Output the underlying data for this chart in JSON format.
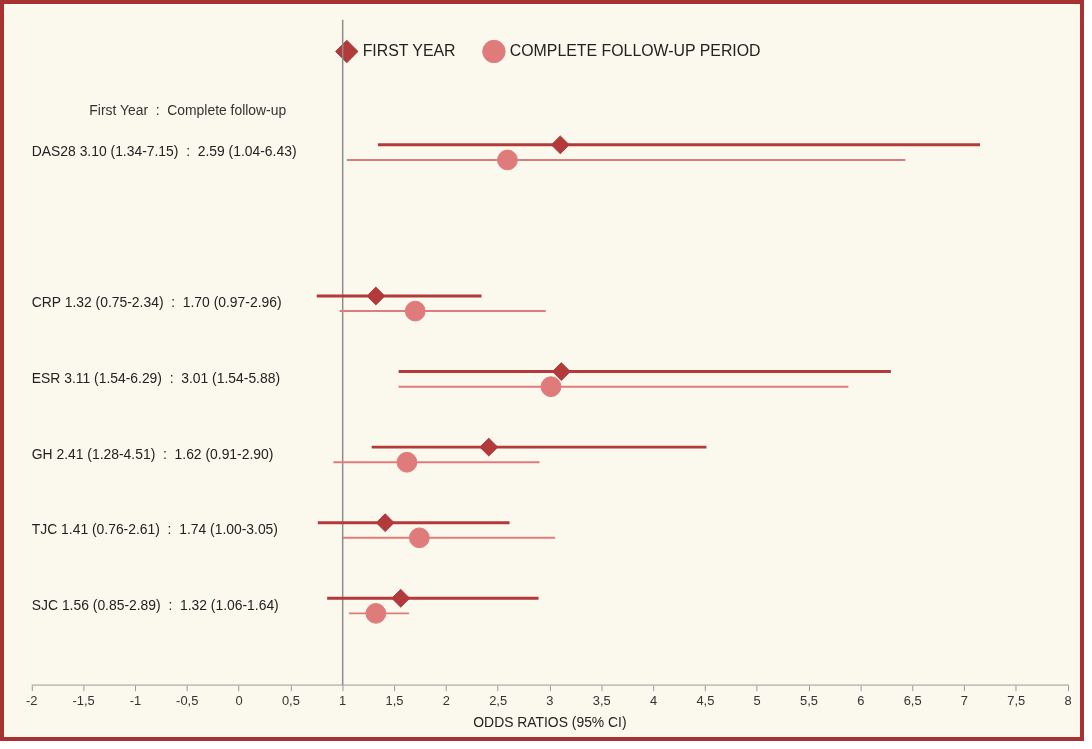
{
  "chart_data": {
    "type": "scatter",
    "orientation": "horizontal",
    "categories": [
      "DAS28 3.10 (1.34-7.15)  :  2.59 (1.04-6.43)",
      null,
      "CRP 1.32 (0.75-2.34)  :  1.70 (0.97-2.96)",
      "ESR 3.11 (1.54-6.29)  :  3.01 (1.54-5.88)",
      "GH 2.41 (1.28-4.51)  :  1.62 (0.91-2.90)",
      "TJC 1.41 (0.76-2.61)  :  1.74 (1.00-3.05)",
      "SJC 1.56 (0.85-2.89)  :  1.32 (1.06-1.64)"
    ],
    "series": [
      {
        "name": "FIRST YEAR",
        "color": "#b23a3a",
        "marker": "diamond",
        "values": [
          3.1,
          null,
          1.32,
          3.11,
          2.41,
          1.41,
          1.56
        ],
        "errors": [
          [
            1.34,
            7.15
          ],
          null,
          [
            0.75,
            2.34
          ],
          [
            1.54,
            6.29
          ],
          [
            1.28,
            4.51
          ],
          [
            0.76,
            2.61
          ],
          [
            0.85,
            2.89
          ]
        ]
      },
      {
        "name": "COMPLETE FOLLOW-UP PERIOD",
        "color": "#e07b7b",
        "marker": "circle",
        "values": [
          2.59,
          null,
          1.7,
          3.01,
          1.62,
          1.74,
          1.32
        ],
        "errors": [
          [
            1.04,
            6.43
          ],
          null,
          [
            0.97,
            2.96
          ],
          [
            1.54,
            5.88
          ],
          [
            0.91,
            2.9
          ],
          [
            1.0,
            3.05
          ],
          [
            1.06,
            1.64
          ]
        ]
      }
    ],
    "xlabel": "ODDS RATIOS (95% CI)",
    "xlim": [
      -2,
      8
    ],
    "xticks": [
      -2,
      {
        "value": -1.5,
        "label": "-1,5"
      },
      -1,
      {
        "value": -0.5,
        "label": "-0,5"
      },
      0,
      {
        "value": 0.5,
        "label": "0,5"
      },
      1,
      {
        "value": 1.5,
        "label": "1,5"
      },
      2,
      {
        "value": 2.5,
        "label": "2,5"
      },
      3,
      {
        "value": 3.5,
        "label": "3,5"
      },
      4,
      {
        "value": 4.5,
        "label": "4,5"
      },
      5,
      {
        "value": 5.5,
        "label": "5,5"
      },
      6,
      {
        "value": 6.5,
        "label": "6,5"
      },
      7,
      {
        "value": 7.5,
        "label": "7,5"
      },
      8
    ],
    "ref_lines": [
      {
        "axis": "x",
        "value": 1,
        "color": "#8c8c8c"
      }
    ],
    "annotations": [
      "First Year  :  Complete follow-up"
    ],
    "legend": "top",
    "grid": false
  }
}
